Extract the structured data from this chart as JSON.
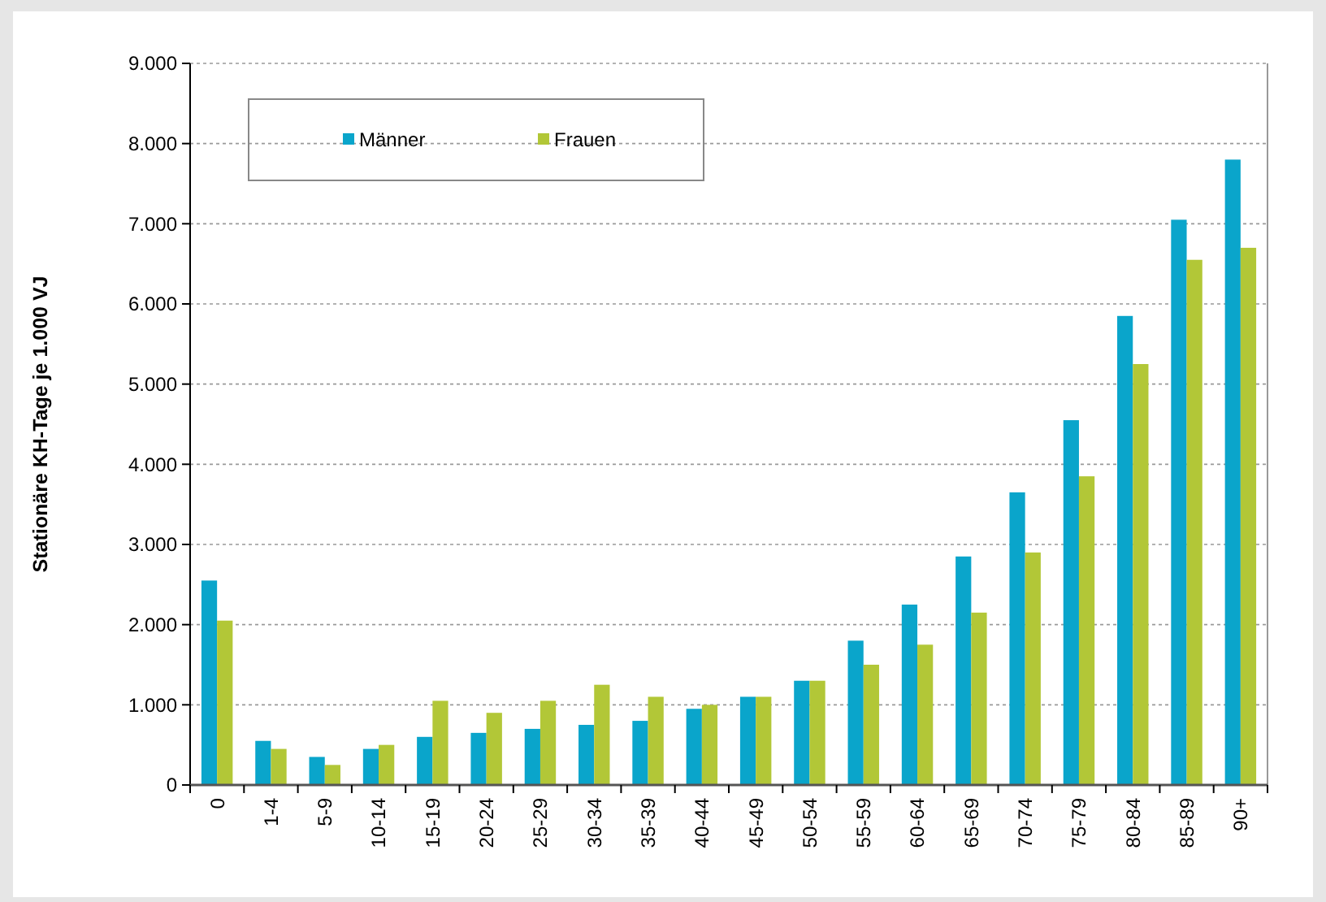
{
  "chart_data": {
    "type": "bar",
    "ylabel": "Stationäre KH-Tage je 1.000 VJ",
    "categories": [
      "0",
      "1-4",
      "5-9",
      "10-14",
      "15-19",
      "20-24",
      "25-29",
      "30-34",
      "35-39",
      "40-44",
      "45-49",
      "50-54",
      "55-59",
      "60-64",
      "65-69",
      "70-74",
      "75-79",
      "80-84",
      "85-89",
      "90+"
    ],
    "series": [
      {
        "name": "Männer",
        "color": "#0aa5cb",
        "values": [
          2550,
          550,
          350,
          450,
          600,
          650,
          700,
          750,
          800,
          950,
          1100,
          1300,
          1800,
          2250,
          2850,
          3650,
          4550,
          5850,
          7050,
          7800
        ]
      },
      {
        "name": "Frauen",
        "color": "#b2c737",
        "values": [
          2050,
          450,
          250,
          500,
          1050,
          900,
          1050,
          1250,
          1100,
          1000,
          1100,
          1300,
          1500,
          1750,
          2150,
          2900,
          3850,
          5250,
          6550,
          6700
        ]
      }
    ],
    "ylim": [
      0,
      9000
    ],
    "yticks": [
      {
        "value": 0,
        "label": "0"
      },
      {
        "value": 1000,
        "label": "1.000"
      },
      {
        "value": 2000,
        "label": "2.000"
      },
      {
        "value": 3000,
        "label": "3.000"
      },
      {
        "value": 4000,
        "label": "4.000"
      },
      {
        "value": 5000,
        "label": "5.000"
      },
      {
        "value": 6000,
        "label": "6.000"
      },
      {
        "value": 7000,
        "label": "7.000"
      },
      {
        "value": 8000,
        "label": "8.000"
      },
      {
        "value": 9000,
        "label": "9.000"
      }
    ],
    "grid": "y",
    "legend": "top left"
  }
}
